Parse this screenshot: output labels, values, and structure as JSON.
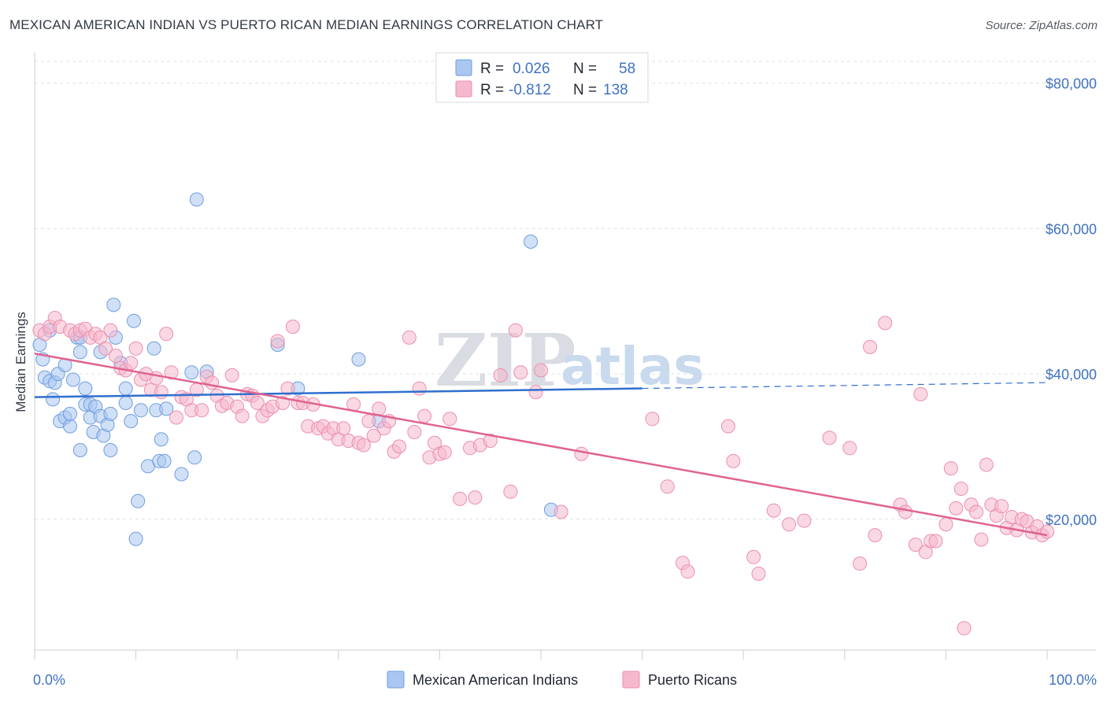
{
  "header": {
    "title": "MEXICAN AMERICAN INDIAN VS PUERTO RICAN MEDIAN EARNINGS CORRELATION CHART",
    "source": "Source: ZipAtlas.com"
  },
  "watermark": {
    "zip": "ZIP",
    "atlas": "atlas"
  },
  "legend": {
    "rows": [
      {
        "r_label": "R =",
        "r_value": "0.026",
        "n_label": "N =",
        "n_value": "58",
        "color": "#a9c7f0"
      },
      {
        "r_label": "R =",
        "r_value": "-0.812",
        "n_label": "N =",
        "n_value": "138",
        "color": "#f5b8cc"
      }
    ]
  },
  "bottom_legend": [
    {
      "label": "Mexican American Indians",
      "color": "#a9c7f0"
    },
    {
      "label": "Puerto Ricans",
      "color": "#f5b8cc"
    }
  ],
  "colors": {
    "blue_fill": "#a9c7f0",
    "blue_stroke": "#6f9ee0",
    "blue_line": "#2f6fcf",
    "pink_fill": "#f5b8cc",
    "pink_stroke": "#eb8fae",
    "pink_line": "#e0638f",
    "tick_label": "#3f72c3",
    "grid": "#dde1e6"
  },
  "chart_data": {
    "type": "scatter",
    "title": "MEXICAN AMERICAN INDIAN VS PUERTO RICAN MEDIAN EARNINGS CORRELATION CHART",
    "xlabel": "",
    "ylabel": "Median Earnings",
    "xlim": [
      0,
      100
    ],
    "ylim": [
      2000,
      83000
    ],
    "x_tick_labels": [
      {
        "value": 0,
        "label": "0.0%"
      },
      {
        "value": 100,
        "label": "100.0%"
      }
    ],
    "y_ticks": [
      {
        "value": 20000,
        "label": "$20,000"
      },
      {
        "value": 40000,
        "label": "$40,000"
      },
      {
        "value": 60000,
        "label": "$60,000"
      },
      {
        "value": 80000,
        "label": "$80,000"
      }
    ],
    "grid": true,
    "legend_position": "top-center",
    "series": [
      {
        "name": "Mexican American Indians",
        "color": "#a9c7f0",
        "trend": {
          "x": [
            0,
            60
          ],
          "y": [
            36800,
            38000
          ],
          "dashed_to_x": 100,
          "dashed_to_y": 38800
        },
        "points": [
          [
            0.5,
            44000
          ],
          [
            0.8,
            42000
          ],
          [
            1.0,
            39500
          ],
          [
            1.5,
            39000
          ],
          [
            1.8,
            36500
          ],
          [
            2.0,
            38800
          ],
          [
            2.3,
            40000
          ],
          [
            2.5,
            33500
          ],
          [
            3.0,
            34000
          ],
          [
            3.0,
            41200
          ],
          [
            3.5,
            32800
          ],
          [
            3.5,
            34500
          ],
          [
            3.8,
            39200
          ],
          [
            4.2,
            45000
          ],
          [
            4.5,
            43000
          ],
          [
            4.5,
            29500
          ],
          [
            5.0,
            35800
          ],
          [
            5.0,
            38000
          ],
          [
            5.5,
            35800
          ],
          [
            5.5,
            34000
          ],
          [
            5.8,
            32000
          ],
          [
            6.0,
            35500
          ],
          [
            6.5,
            34200
          ],
          [
            6.5,
            43000
          ],
          [
            6.8,
            31500
          ],
          [
            7.2,
            33000
          ],
          [
            7.5,
            34500
          ],
          [
            7.5,
            29500
          ],
          [
            7.8,
            49500
          ],
          [
            8.0,
            45000
          ],
          [
            8.5,
            41500
          ],
          [
            9.0,
            36000
          ],
          [
            9.0,
            38000
          ],
          [
            9.5,
            33500
          ],
          [
            9.8,
            47300
          ],
          [
            10.0,
            17300
          ],
          [
            10.2,
            22500
          ],
          [
            10.5,
            35000
          ],
          [
            11.2,
            27300
          ],
          [
            11.8,
            43500
          ],
          [
            12.0,
            35000
          ],
          [
            12.3,
            28000
          ],
          [
            12.5,
            31000
          ],
          [
            12.8,
            28000
          ],
          [
            13.0,
            35200
          ],
          [
            14.5,
            26200
          ],
          [
            15.5,
            40200
          ],
          [
            15.8,
            28500
          ],
          [
            16.0,
            64000
          ],
          [
            17.0,
            40300
          ],
          [
            24.0,
            44000
          ],
          [
            26.0,
            38000
          ],
          [
            32.0,
            42000
          ],
          [
            34.0,
            33500
          ],
          [
            49.0,
            58200
          ],
          [
            51.0,
            21300
          ],
          [
            4.5,
            45000
          ],
          [
            1.5,
            46000
          ]
        ]
      },
      {
        "name": "Puerto Ricans",
        "color": "#f5b8cc",
        "trend": {
          "x": [
            0,
            100
          ],
          "y": [
            42800,
            17800
          ]
        },
        "points": [
          [
            0.5,
            46000
          ],
          [
            1.0,
            45500
          ],
          [
            1.5,
            46500
          ],
          [
            2.0,
            47700
          ],
          [
            2.5,
            46500
          ],
          [
            3.5,
            46000
          ],
          [
            4.0,
            45500
          ],
          [
            4.5,
            46000
          ],
          [
            5.0,
            46200
          ],
          [
            5.5,
            45000
          ],
          [
            6.0,
            45500
          ],
          [
            6.5,
            45000
          ],
          [
            7.0,
            43500
          ],
          [
            7.5,
            46000
          ],
          [
            8.0,
            42500
          ],
          [
            8.5,
            40800
          ],
          [
            9.0,
            40500
          ],
          [
            9.5,
            41500
          ],
          [
            10.0,
            43500
          ],
          [
            10.5,
            39200
          ],
          [
            11.0,
            40000
          ],
          [
            11.5,
            37800
          ],
          [
            12.0,
            39400
          ],
          [
            12.5,
            37500
          ],
          [
            13.0,
            45500
          ],
          [
            13.5,
            40200
          ],
          [
            14.0,
            34000
          ],
          [
            14.5,
            36800
          ],
          [
            15.0,
            36500
          ],
          [
            15.5,
            35000
          ],
          [
            16.0,
            37800
          ],
          [
            16.5,
            35000
          ],
          [
            17.0,
            39600
          ],
          [
            17.5,
            38800
          ],
          [
            18.0,
            37000
          ],
          [
            18.5,
            35600
          ],
          [
            19.0,
            36000
          ],
          [
            19.5,
            39800
          ],
          [
            20.0,
            35500
          ],
          [
            20.5,
            34200
          ],
          [
            21.0,
            37200
          ],
          [
            21.5,
            37000
          ],
          [
            22.0,
            36000
          ],
          [
            22.5,
            34200
          ],
          [
            23.0,
            35000
          ],
          [
            23.5,
            35500
          ],
          [
            24.0,
            44500
          ],
          [
            24.5,
            36000
          ],
          [
            25.0,
            38000
          ],
          [
            25.5,
            46500
          ],
          [
            26.0,
            36000
          ],
          [
            26.5,
            36000
          ],
          [
            27.0,
            32800
          ],
          [
            27.5,
            35800
          ],
          [
            28.0,
            32500
          ],
          [
            28.5,
            32800
          ],
          [
            29.0,
            31800
          ],
          [
            29.5,
            32500
          ],
          [
            30.0,
            31000
          ],
          [
            30.5,
            32500
          ],
          [
            31.0,
            30800
          ],
          [
            31.5,
            35800
          ],
          [
            32.0,
            30500
          ],
          [
            32.5,
            30200
          ],
          [
            33.0,
            33500
          ],
          [
            33.5,
            31500
          ],
          [
            34.0,
            35200
          ],
          [
            34.5,
            32500
          ],
          [
            35.0,
            33500
          ],
          [
            35.5,
            29300
          ],
          [
            36.0,
            30000
          ],
          [
            37.0,
            45000
          ],
          [
            37.5,
            32000
          ],
          [
            38.0,
            38000
          ],
          [
            38.5,
            34200
          ],
          [
            39.0,
            28500
          ],
          [
            39.5,
            30500
          ],
          [
            40.0,
            29000
          ],
          [
            40.5,
            29200
          ],
          [
            41.0,
            33800
          ],
          [
            42.0,
            22800
          ],
          [
            43.0,
            29800
          ],
          [
            43.5,
            23000
          ],
          [
            44.0,
            30200
          ],
          [
            45.0,
            30800
          ],
          [
            46.0,
            39800
          ],
          [
            47.0,
            23800
          ],
          [
            47.5,
            46000
          ],
          [
            48.0,
            40200
          ],
          [
            49.5,
            37500
          ],
          [
            50.0,
            40500
          ],
          [
            52.0,
            21000
          ],
          [
            54.0,
            29000
          ],
          [
            61.0,
            33800
          ],
          [
            62.5,
            24500
          ],
          [
            64.0,
            14000
          ],
          [
            64.5,
            12800
          ],
          [
            68.5,
            32800
          ],
          [
            69.0,
            28000
          ],
          [
            71.0,
            14800
          ],
          [
            71.5,
            12500
          ],
          [
            73.0,
            21200
          ],
          [
            74.5,
            19300
          ],
          [
            76.0,
            19800
          ],
          [
            78.5,
            31200
          ],
          [
            80.5,
            29800
          ],
          [
            81.5,
            13900
          ],
          [
            82.5,
            43700
          ],
          [
            83.0,
            17800
          ],
          [
            84.0,
            47000
          ],
          [
            85.5,
            22000
          ],
          [
            86.0,
            21000
          ],
          [
            87.0,
            16500
          ],
          [
            87.5,
            37200
          ],
          [
            88.0,
            15500
          ],
          [
            88.5,
            17000
          ],
          [
            89.0,
            17000
          ],
          [
            90.0,
            19300
          ],
          [
            90.5,
            27000
          ],
          [
            91.0,
            21500
          ],
          [
            91.5,
            24200
          ],
          [
            91.8,
            5000
          ],
          [
            92.5,
            22000
          ],
          [
            93.0,
            21000
          ],
          [
            93.5,
            17200
          ],
          [
            94.0,
            27500
          ],
          [
            94.5,
            22000
          ],
          [
            95.0,
            20500
          ],
          [
            95.5,
            21800
          ],
          [
            96.0,
            18800
          ],
          [
            96.5,
            20300
          ],
          [
            97.0,
            18500
          ],
          [
            97.5,
            20000
          ],
          [
            98.0,
            19700
          ],
          [
            98.5,
            18200
          ],
          [
            99.0,
            19000
          ],
          [
            99.5,
            17800
          ],
          [
            100.0,
            18300
          ]
        ]
      }
    ]
  }
}
